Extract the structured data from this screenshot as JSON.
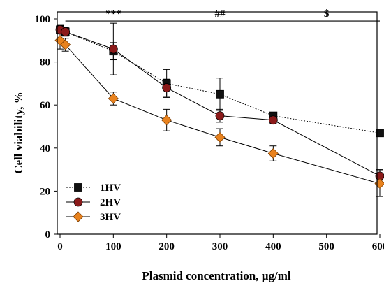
{
  "chart_data": {
    "type": "line",
    "title": "",
    "xlabel": "Plasmid concentration, µg/ml",
    "ylabel": "Cell viability, %",
    "xlim": [
      0,
      600
    ],
    "ylim": [
      0,
      100
    ],
    "xticks": [
      0,
      100,
      200,
      300,
      400,
      500,
      600
    ],
    "yticks": [
      0,
      20,
      40,
      60,
      80,
      100
    ],
    "grid": false,
    "legend_position": "bottom-left",
    "significance_bar": {
      "y": 99,
      "x_range": [
        10,
        600
      ]
    },
    "annotations": [
      {
        "text": "***",
        "x": 100,
        "y": 102
      },
      {
        "text": "##",
        "x": 300,
        "y": 102
      },
      {
        "text": "$",
        "x": 500,
        "y": 102
      }
    ],
    "series": [
      {
        "name": "1HV",
        "marker": "square",
        "color": "#111111",
        "line_style": "dotted",
        "x": [
          0,
          10,
          100,
          200,
          300,
          400,
          600
        ],
        "y": [
          95,
          94,
          85,
          70,
          65,
          55,
          47
        ],
        "err": [
          2,
          2,
          4,
          6.5,
          7.5,
          1,
          1
        ]
      },
      {
        "name": "2HV",
        "marker": "circle",
        "color": "#8b1a1a",
        "line_style": "solid",
        "x": [
          0,
          10,
          100,
          200,
          300,
          400,
          600
        ],
        "y": [
          95,
          94,
          86,
          68,
          55,
          53,
          27
        ],
        "err": [
          2,
          2,
          12,
          4,
          3,
          1.5,
          3
        ]
      },
      {
        "name": "3HV",
        "marker": "diamond",
        "color": "#e8821e",
        "line_style": "solid",
        "x": [
          0,
          10,
          100,
          200,
          300,
          400,
          600
        ],
        "y": [
          90,
          88,
          63,
          53,
          45,
          37.5,
          23.5
        ],
        "err": [
          4,
          3,
          3,
          5,
          4,
          3.5,
          6
        ]
      }
    ]
  }
}
